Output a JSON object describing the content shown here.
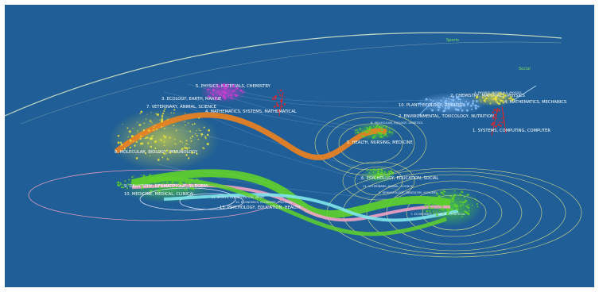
{
  "colors": {
    "background": "#1f5e96",
    "orange": "#f0821e",
    "green": "#5fd12a",
    "pink": "#f2a3c3",
    "cyan": "#7fe6ea",
    "yellow": "#e8e23a",
    "magenta": "#d63ad6",
    "red": "#e3242b",
    "lightblue": "#7fb8ff",
    "ellipse": "#f4f08a"
  },
  "left_labels": {
    "l5": "5. PHYSICS, MATERIALS, CHEMISTRY",
    "l3": "3. ECOLOGY, EARTH, MARINE",
    "l7": "7. VETERINARY, ANIMAL, SCIENCE",
    "l4": "4. MATHEMATICS, SYSTEMS, MATHEMATICAL",
    "l8": "8. MOLECULAR, BIOLOGY, IMMUNOLOGY",
    "l9": "9. DENTISTRY, DERMATOLOGY, SURGERY",
    "l10": "10. MEDICINE, MEDICAL, CLINICAL",
    "l11": "11. SPORTS, REHABILITATION, SPORT",
    "l12": "12. ECONOMICS, ECONOMIC, POLITICAL",
    "l13": "13. PSYCHOLOGY, EDUCATION, HEALTH"
  },
  "right_labels": {
    "r2": "2. CHEMISTRY, MATERIALS, PHYSICS",
    "r3": "3. PHYSICS, MATERIALS, PHYSICS",
    "r4": "4. MATHEMATICS, MECHANICS",
    "r10": "10. PLANT, ECOLOGY, ZOOLOGY",
    "r2b": "2. ENVIRONMENTAL, TOXICOLOGY, NUTRITION",
    "r1": "1. SYSTEMS, COMPUTING, COMPUTER",
    "r8": "8. MOLECULAR, BIOLOGY, GENETICS",
    "r5": "5. HEALTH, NURSING, MEDICINE",
    "r6": "6. PSYCHOLOGY, EDUCATION, SOCIAL",
    "r11": "11. VETERINARY, ANIMAL, SCIENCE",
    "r9": "9. DERMATOLOGY, DENTISTRY, SURGERY",
    "r7": "7. ECONOMICS, ECONOMIC, POLITICAL"
  },
  "small_labels": {
    "top_green": "Sports",
    "top_green2": "Social"
  }
}
